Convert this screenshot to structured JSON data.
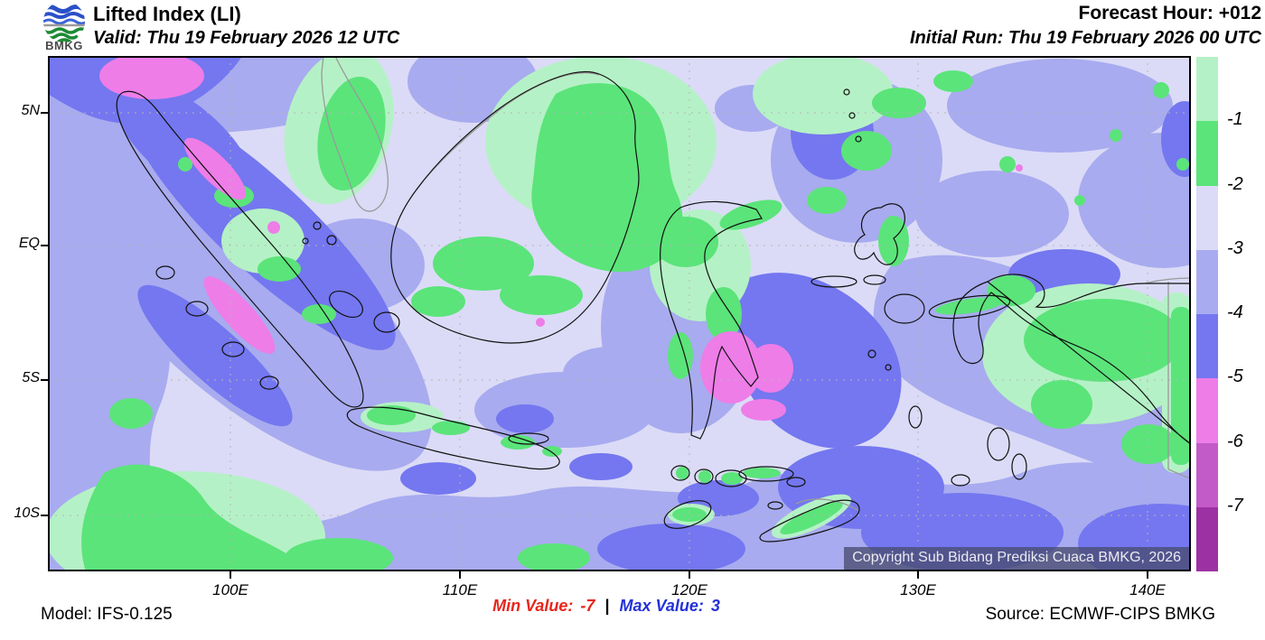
{
  "header": {
    "logo_text": "BMKG",
    "title": "Lifted Index (LI)",
    "valid": "Valid: Thu 19 February 2026 12 UTC",
    "forecast_hour": "Forecast Hour: +012",
    "initial_run": "Initial Run: Thu 19 February 2026 00 UTC"
  },
  "map": {
    "copyright": "Copyright Sub Bidang Prediksi Cuaca BMKG, 2026",
    "y_ticks": [
      "5N",
      "EQ",
      "5S",
      "10S"
    ],
    "x_ticks": [
      "100E",
      "110E",
      "120E",
      "130E",
      "140E"
    ]
  },
  "legend": {
    "labels": [
      "-1",
      "-2",
      "-3",
      "-4",
      "-5",
      "-6",
      "-7"
    ],
    "colors": [
      "#b5f1c6",
      "#5be47a",
      "#dbdbf7",
      "#a8abef",
      "#7477ef",
      "#ee7de8",
      "#c25bc7",
      "#9c31a3"
    ]
  },
  "footer": {
    "model": "Model: IFS-0.125",
    "min_label": "Min Value:",
    "min_value": "-7",
    "separator": "|",
    "max_label": "Max Value:",
    "max_value": "3",
    "min_color": "#e8251c",
    "max_color": "#2431d8",
    "source": "Source: ECMWF-CIPS BMKG"
  }
}
